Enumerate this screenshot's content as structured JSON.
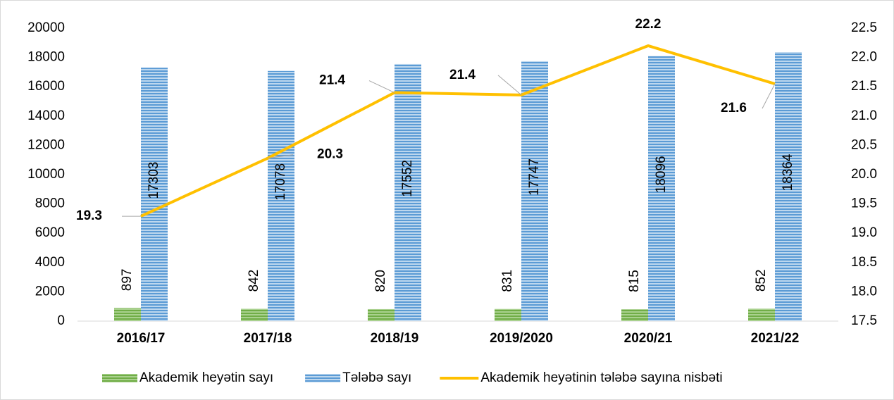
{
  "chart_data": {
    "type": "bar",
    "categories": [
      "2016/17",
      "2017/18",
      "2018/19",
      "2019/2020",
      "2020/21",
      "2021/22"
    ],
    "series": [
      {
        "name": "Akademik heyətin sayı",
        "color": "#70ad47",
        "values": [
          897,
          842,
          820,
          831,
          815,
          852
        ]
      },
      {
        "name": "Tələbə sayı",
        "color": "#5b9bd5",
        "values": [
          17303,
          17078,
          17552,
          17747,
          18096,
          18364
        ]
      },
      {
        "name": "Akademik heyətinin tələbə sayına nisbəti",
        "type": "line",
        "axis": "y2",
        "color": "#ffc000",
        "values": [
          19.29,
          20.28,
          21.4,
          21.36,
          22.2,
          21.55
        ],
        "value_labels": [
          "19.3",
          "20.3",
          "21.4",
          "21.4",
          "22.2",
          "21.6"
        ]
      }
    ],
    "ylim": [
      0,
      20000
    ],
    "yticks": [
      0,
      2000,
      4000,
      6000,
      8000,
      10000,
      12000,
      14000,
      16000,
      18000,
      20000
    ],
    "y2lim": [
      17.5,
      22.5
    ],
    "y2ticks": [
      17.5,
      {
        "value": 18,
        "label": "18.0"
      },
      18.5,
      {
        "value": 19,
        "label": "19.0"
      },
      19.5,
      {
        "value": 20,
        "label": "20.0"
      },
      20.5,
      {
        "value": 21,
        "label": "21.0"
      },
      21.5,
      {
        "value": 22,
        "label": "22.0"
      },
      22.5
    ],
    "legend": "bottom"
  }
}
